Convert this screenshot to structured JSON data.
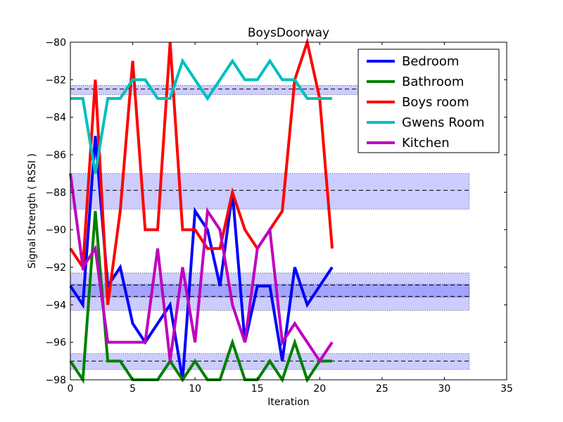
{
  "chart_data": {
    "type": "line",
    "title": "BoysDoorway",
    "xlabel": "Iteration",
    "ylabel": "Signal Strength  ( RSSI )",
    "xlim": [
      0,
      35
    ],
    "ylim": [
      -98,
      -80
    ],
    "xticks": [
      0,
      5,
      10,
      15,
      20,
      25,
      30,
      35
    ],
    "yticks": [
      -98,
      -96,
      -94,
      -92,
      -90,
      -88,
      -86,
      -84,
      -82,
      -80
    ],
    "grid": false,
    "legend_position": "top-right",
    "x": [
      0,
      1,
      2,
      3,
      4,
      5,
      6,
      7,
      8,
      9,
      10,
      11,
      12,
      13,
      14,
      15,
      16,
      17,
      18,
      19,
      20,
      21
    ],
    "series": [
      {
        "name": "Bedroom",
        "color": "#0000ff",
        "values": [
          -93,
          -94,
          -85,
          -93,
          -92,
          -95,
          -96,
          -95,
          -94,
          -98,
          -89,
          -90,
          -93,
          -88,
          -96,
          -93,
          -93,
          -97,
          -92,
          -94,
          -93,
          -92
        ]
      },
      {
        "name": "Bathroom",
        "color": "#008000",
        "values": [
          -97,
          -98,
          -89,
          -97,
          -97,
          -98,
          -98,
          -98,
          -97,
          -98,
          -97,
          -98,
          -98,
          -96,
          -98,
          -98,
          -97,
          -98,
          -96,
          -98,
          -97,
          -97
        ]
      },
      {
        "name": "Boys room",
        "color": "#ff0000",
        "values": [
          -91,
          -92,
          -82,
          -94,
          -89,
          -81,
          -90,
          -90,
          -80,
          -90,
          -90,
          -91,
          -91,
          -88,
          -90,
          -91,
          -90,
          -89,
          -82,
          -80,
          -83,
          -91
        ]
      },
      {
        "name": "Gwens Room",
        "color": "#00bfbf",
        "values": [
          -83,
          -83,
          -87,
          -83,
          -83,
          -82,
          -82,
          -83,
          -83,
          -81,
          -82,
          -83,
          -82,
          -81,
          -82,
          -82,
          -81,
          -82,
          -82,
          -83,
          -83,
          -83
        ]
      },
      {
        "name": "Kitchen",
        "color": "#bf00bf",
        "values": [
          -87,
          -92,
          -91,
          -96,
          -96,
          -96,
          -96,
          -91,
          -97,
          -92,
          -96,
          -89,
          -90,
          -94,
          -96,
          -91,
          -90,
          -96,
          -95,
          -96,
          -97,
          -96
        ]
      }
    ],
    "bands": [
      {
        "center": -82.5,
        "low": -82.8,
        "high": -82.3,
        "x_end": 23
      },
      {
        "center": -87.9,
        "low": -88.9,
        "high": -87.0,
        "x_end": 32
      },
      {
        "center": -92.95,
        "low": -93.6,
        "high": -92.3,
        "x_end": 32
      },
      {
        "center": -93.55,
        "low": -94.3,
        "high": -92.9,
        "x_end": 32
      },
      {
        "center": -97.0,
        "low": -97.45,
        "high": -96.6,
        "x_end": 32
      }
    ],
    "band_color": "#0000ff"
  }
}
